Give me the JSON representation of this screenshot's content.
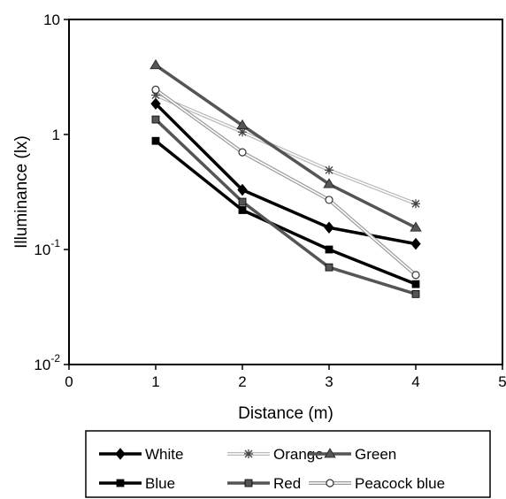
{
  "chart_data": {
    "type": "line",
    "title": "",
    "xlabel": "Distance (m)",
    "ylabel": "Illuminance (lx)",
    "xlim": [
      0,
      5
    ],
    "ylim": [
      0.01,
      10
    ],
    "yscale": "log",
    "grid": false,
    "legend_position": "bottom",
    "x_ticks": [
      "0",
      "1",
      "2",
      "3",
      "4",
      "5"
    ],
    "y_ticks": [
      {
        "base": "10",
        "exp": "-2"
      },
      {
        "base": "10",
        "exp": "-1"
      },
      {
        "base": "1",
        "exp": ""
      },
      {
        "base": "10",
        "exp": ""
      }
    ],
    "x": [
      1,
      2,
      3,
      4
    ],
    "series": [
      {
        "name": "White",
        "values": [
          1.85,
          0.33,
          0.155,
          0.112
        ],
        "color": "#000000",
        "marker": "diamond",
        "line_style": "thick"
      },
      {
        "name": "Orange",
        "values": [
          2.2,
          1.05,
          0.49,
          0.25
        ],
        "color": "#b8b8b8",
        "marker": "star",
        "line_style": "double"
      },
      {
        "name": "Green",
        "values": [
          4.0,
          1.2,
          0.37,
          0.155
        ],
        "color": "#555555",
        "marker": "triangle",
        "line_style": "thick"
      },
      {
        "name": "Blue",
        "values": [
          0.88,
          0.22,
          0.1,
          0.05
        ],
        "color": "#000000",
        "marker": "square",
        "line_style": "thick"
      },
      {
        "name": "Red",
        "values": [
          1.35,
          0.26,
          0.07,
          0.041
        ],
        "color": "#555555",
        "marker": "square",
        "line_style": "thick"
      },
      {
        "name": "Peacock  blue",
        "values": [
          2.45,
          0.7,
          0.27,
          0.06
        ],
        "color": "#9a9a9a",
        "marker": "circle",
        "line_style": "double"
      }
    ]
  }
}
